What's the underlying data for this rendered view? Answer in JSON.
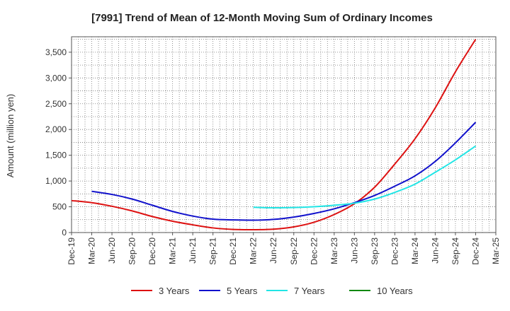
{
  "chart_data": {
    "type": "line",
    "title": "[7991]  Trend of Mean of 12-Month Moving Sum of Ordinary Incomes",
    "xlabel": "",
    "ylabel": "Amount (million yen)",
    "ylim": [
      0,
      3800
    ],
    "yticks": [
      0,
      500,
      1000,
      1500,
      2000,
      2500,
      3000,
      3500
    ],
    "ytick_labels": [
      "0",
      "500",
      "1,000",
      "1,500",
      "2,000",
      "2,500",
      "3,000",
      "3,500"
    ],
    "categories": [
      "Dec-19",
      "Mar-20",
      "Jun-20",
      "Sep-20",
      "Dec-20",
      "Mar-21",
      "Jun-21",
      "Sep-21",
      "Dec-21",
      "Mar-22",
      "Jun-22",
      "Sep-22",
      "Dec-22",
      "Mar-23",
      "Jun-23",
      "Sep-23",
      "Dec-23",
      "Mar-24",
      "Jun-24",
      "Sep-24",
      "Dec-24",
      "Mar-25"
    ],
    "grid": true,
    "legend_position": "bottom",
    "series": [
      {
        "name": "3 Years",
        "color": "#dd1111",
        "values": [
          620,
          580,
          510,
          420,
          310,
          220,
          150,
          90,
          60,
          55,
          65,
          110,
          200,
          350,
          560,
          880,
          1330,
          1820,
          2420,
          3120,
          3750,
          null
        ]
      },
      {
        "name": "5 Years",
        "color": "#1111cc",
        "values": [
          null,
          800,
          740,
          650,
          530,
          410,
          320,
          260,
          245,
          240,
          255,
          300,
          370,
          460,
          580,
          720,
          900,
          1100,
          1380,
          1740,
          2140,
          null
        ]
      },
      {
        "name": "7 Years",
        "color": "#22e5e5",
        "values": [
          null,
          null,
          null,
          null,
          null,
          null,
          null,
          null,
          null,
          490,
          480,
          485,
          500,
          530,
          570,
          650,
          780,
          940,
          1170,
          1410,
          1680,
          null
        ]
      },
      {
        "name": "10 Years",
        "color": "#118811",
        "values": [
          null,
          null,
          null,
          null,
          null,
          null,
          null,
          null,
          null,
          null,
          null,
          null,
          null,
          null,
          null,
          null,
          null,
          null,
          null,
          null,
          null,
          null
        ]
      }
    ]
  }
}
